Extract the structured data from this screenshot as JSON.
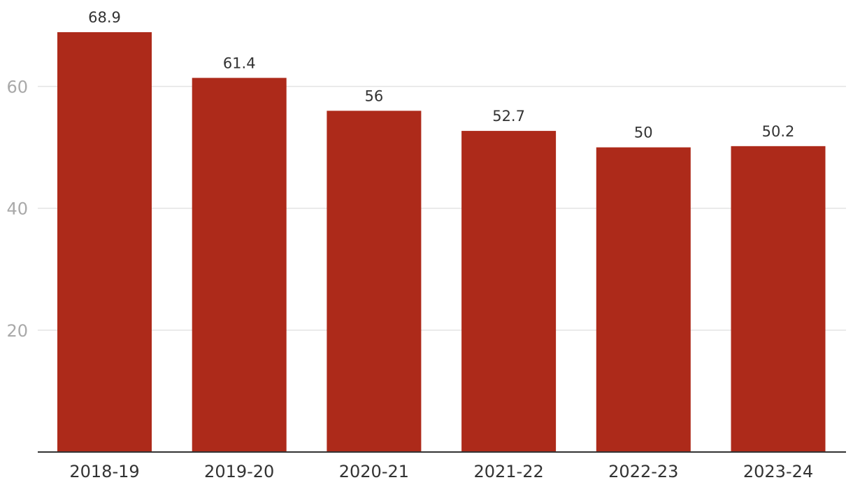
{
  "chart_data": {
    "type": "bar",
    "categories": [
      "2018-19",
      "2019-20",
      "2020-21",
      "2021-22",
      "2022-23",
      "2023-24"
    ],
    "series": [
      {
        "values": [
          68.9,
          61.4,
          56,
          52.7,
          50,
          50.2
        ]
      }
    ],
    "data_labels": [
      "68.9",
      "61.4",
      "56",
      "52.7",
      "50",
      "50.2"
    ],
    "y_ticks": [
      20,
      40,
      60
    ],
    "ylim": [
      0,
      70
    ],
    "title": "",
    "xlabel": "",
    "ylabel": "",
    "grid": true,
    "legend": "none",
    "colors": {
      "bar": "#ad2a1a",
      "gridline": "#e3e3e3",
      "baseline": "#333333",
      "y_tick_text": "#a9a9a9",
      "text": "#333333"
    }
  }
}
